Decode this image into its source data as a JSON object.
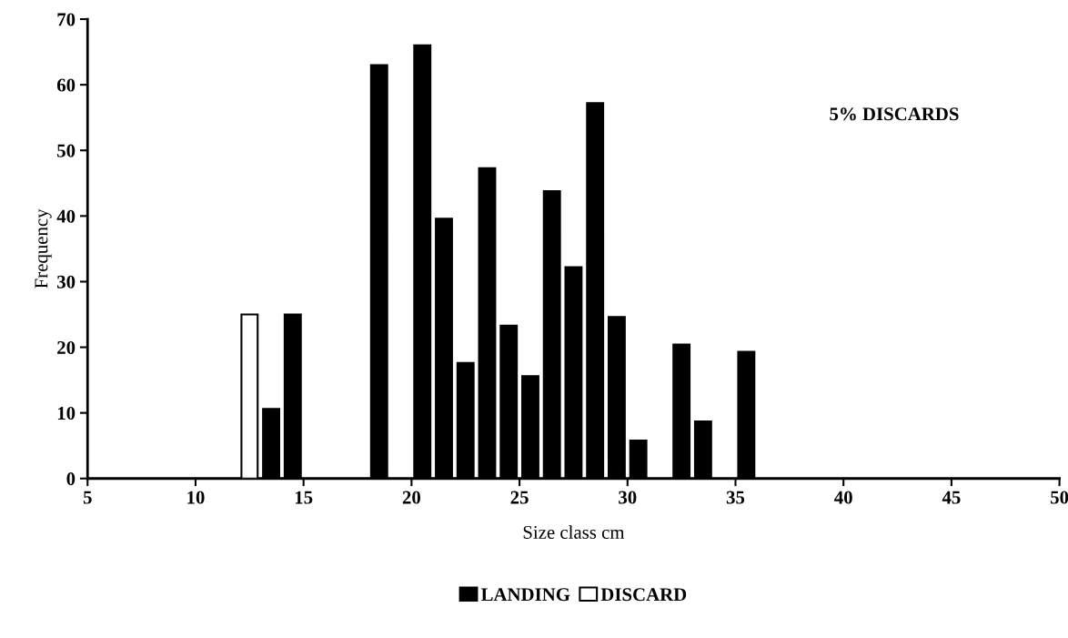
{
  "chart_data": {
    "type": "bar",
    "xlabel": "Size class cm",
    "ylabel": "Frequency",
    "xlim": [
      5,
      50
    ],
    "xticks": [
      5,
      10,
      15,
      20,
      25,
      30,
      35,
      40,
      45,
      50
    ],
    "ylim": [
      0,
      70
    ],
    "yticks": [
      0,
      10,
      20,
      30,
      40,
      50,
      60,
      70
    ],
    "series": [
      {
        "name": "LANDING",
        "color": "#000000",
        "x": [
          13.5,
          14.5,
          18.5,
          20.5,
          21.5,
          22.5,
          23.5,
          24.5,
          25.5,
          26.5,
          27.5,
          28.5,
          29.5,
          30.5,
          32.5,
          33.5,
          35.5
        ],
        "values": [
          10.6,
          25,
          63,
          66,
          39.6,
          17.6,
          47.3,
          23.3,
          15.6,
          43.8,
          32.2,
          57.2,
          24.6,
          5.8,
          20.4,
          8.7,
          19.3
        ]
      },
      {
        "name": "DISCARD",
        "color": "#ffffff",
        "x": [
          12.5
        ],
        "values": [
          25
        ]
      }
    ],
    "annotations": [
      "5% DISCARDS"
    ],
    "legend": "bottom",
    "grid": false
  }
}
